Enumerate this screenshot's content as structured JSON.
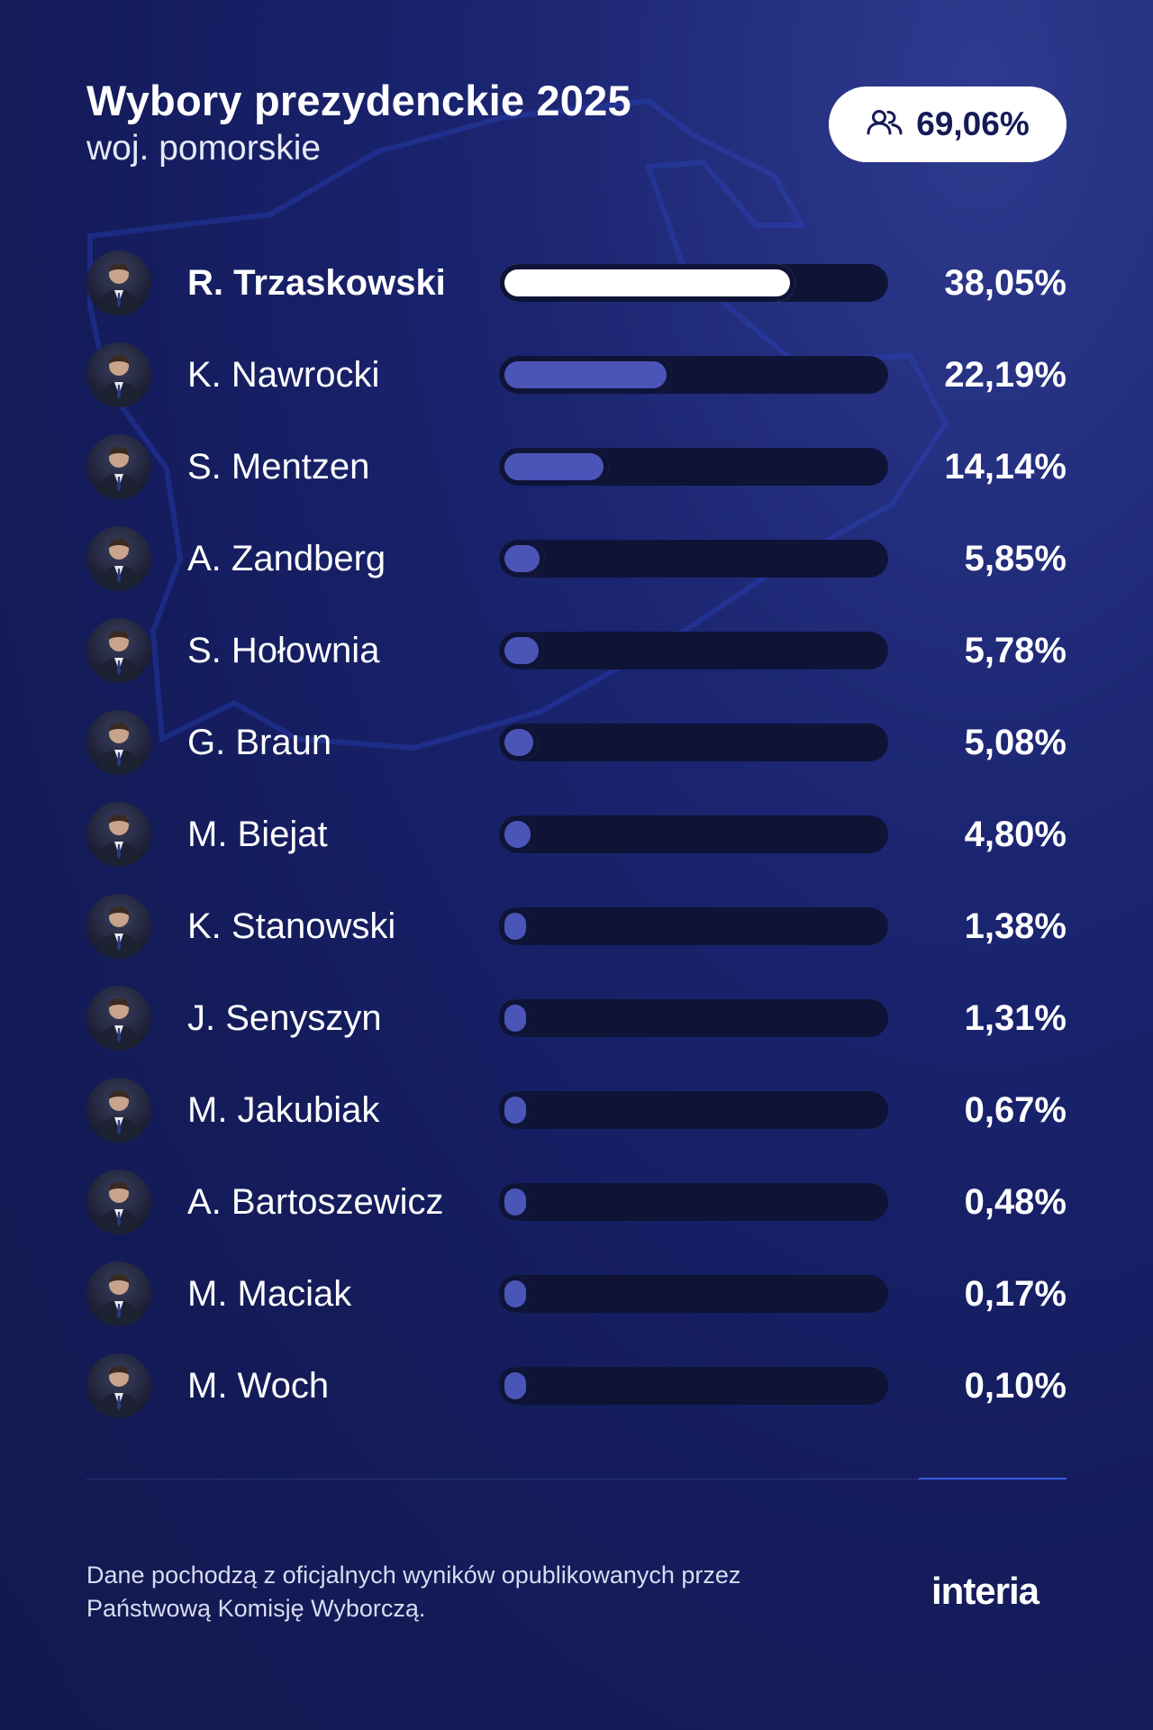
{
  "header": {
    "title": "Wybory prezydenckie 2025",
    "subtitle": "woj. pomorskie"
  },
  "turnout": {
    "icon": "people-icon",
    "value": "69,06%"
  },
  "chart_data": {
    "type": "bar",
    "orientation": "horizontal",
    "unit": "%",
    "categories": [
      "R. Trzaskowski",
      "K. Nawrocki",
      "S. Mentzen",
      "A. Zandberg",
      "S. Hołownia",
      "G. Braun",
      "M. Biejat",
      "K. Stanowski",
      "J. Senyszyn",
      "M. Jakubiak",
      "A. Bartoszewicz",
      "M. Maciak",
      "M. Woch"
    ],
    "values": [
      38.05,
      22.19,
      14.14,
      5.85,
      5.78,
      5.08,
      4.8,
      1.38,
      1.31,
      0.67,
      0.48,
      0.17,
      0.1
    ],
    "labels": [
      "38,05%",
      "22,19%",
      "14,14%",
      "5,85%",
      "5,78%",
      "5,08%",
      "4,80%",
      "1,38%",
      "1,31%",
      "0,67%",
      "0,48%",
      "0,17%",
      "0,10%"
    ],
    "xlim": [
      0,
      50
    ],
    "highlight_color": "#ffffff",
    "bar_color": "#4b55b8",
    "track_color": "#0f1437"
  },
  "footer": {
    "note_line1": "Dane pochodzą z oficjalnych wyników opublikowanych przez",
    "note_line2": "Państwową Komisję Wyborczą.",
    "logo": "interia"
  }
}
